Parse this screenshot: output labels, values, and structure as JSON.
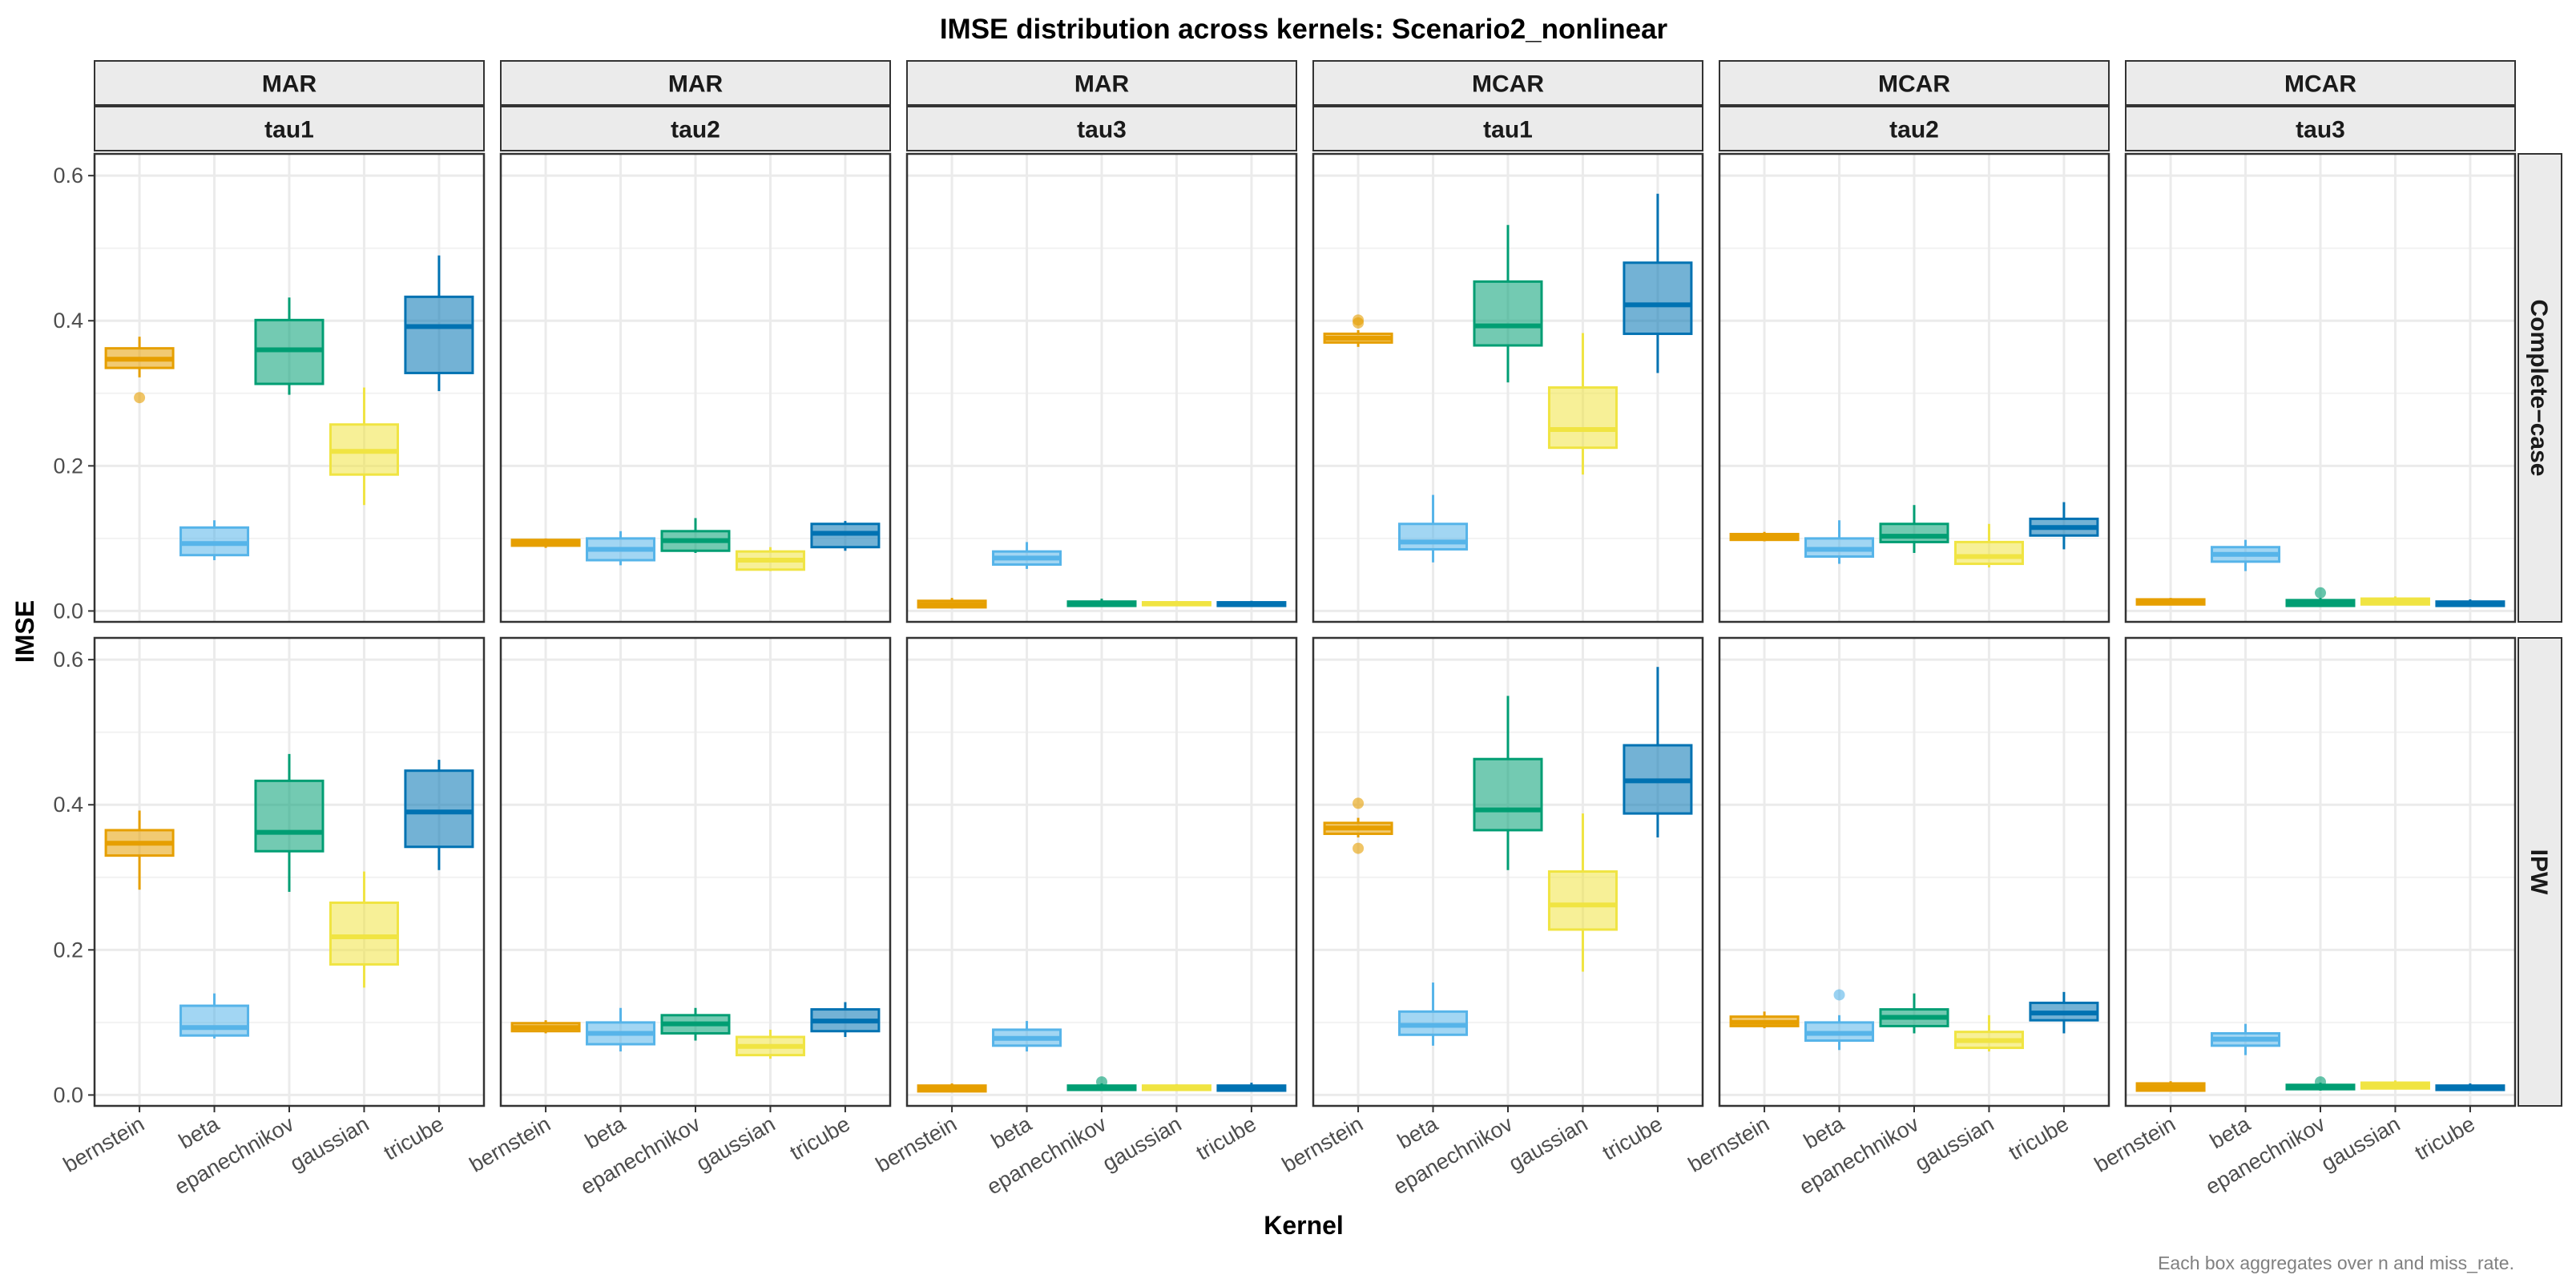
{
  "chart_data": {
    "type": "boxplot",
    "title": "IMSE distribution across kernels: Scenario2_nonlinear",
    "xlabel": "Kernel",
    "ylabel": "IMSE",
    "caption": "Each box aggregates over n and miss_rate.",
    "ylim": [
      -0.015,
      0.63
    ],
    "yticks": [
      0.0,
      0.2,
      0.4,
      0.6
    ],
    "ytick_labels": [
      "0.0",
      "0.2",
      "0.4",
      "0.6"
    ],
    "grid": true,
    "categories": [
      "bernstein",
      "beta",
      "epanechnikov",
      "gaussian",
      "tricube"
    ],
    "colors": {
      "bernstein": "#E69F00",
      "beta": "#56B4E9",
      "epanechnikov": "#009E73",
      "gaussian": "#F0E442",
      "tricube": "#0072B2"
    },
    "columns": [
      {
        "mech": "MAR",
        "tau": "tau1"
      },
      {
        "mech": "MAR",
        "tau": "tau2"
      },
      {
        "mech": "MAR",
        "tau": "tau3"
      },
      {
        "mech": "MCAR",
        "tau": "tau1"
      },
      {
        "mech": "MCAR",
        "tau": "tau2"
      },
      {
        "mech": "MCAR",
        "tau": "tau3"
      }
    ],
    "rows": [
      "Complete−case",
      "IPW"
    ],
    "panels": [
      {
        "row": 0,
        "col": 0,
        "boxes": [
          {
            "kernel": "bernstein",
            "min": 0.322,
            "q1": 0.335,
            "median": 0.347,
            "q3": 0.362,
            "max": 0.378,
            "outliers": [
              0.294
            ]
          },
          {
            "kernel": "beta",
            "min": 0.07,
            "q1": 0.077,
            "median": 0.093,
            "q3": 0.115,
            "max": 0.125,
            "outliers": []
          },
          {
            "kernel": "epanechnikov",
            "min": 0.298,
            "q1": 0.313,
            "median": 0.36,
            "q3": 0.401,
            "max": 0.432,
            "outliers": []
          },
          {
            "kernel": "gaussian",
            "min": 0.146,
            "q1": 0.188,
            "median": 0.22,
            "q3": 0.257,
            "max": 0.308,
            "outliers": []
          },
          {
            "kernel": "tricube",
            "min": 0.303,
            "q1": 0.328,
            "median": 0.392,
            "q3": 0.433,
            "max": 0.49,
            "outliers": []
          }
        ]
      },
      {
        "row": 0,
        "col": 1,
        "boxes": [
          {
            "kernel": "bernstein",
            "min": 0.087,
            "q1": 0.09,
            "median": 0.094,
            "q3": 0.098,
            "max": 0.1,
            "outliers": []
          },
          {
            "kernel": "beta",
            "min": 0.063,
            "q1": 0.07,
            "median": 0.085,
            "q3": 0.1,
            "max": 0.11,
            "outliers": []
          },
          {
            "kernel": "epanechnikov",
            "min": 0.08,
            "q1": 0.083,
            "median": 0.097,
            "q3": 0.11,
            "max": 0.128,
            "outliers": []
          },
          {
            "kernel": "gaussian",
            "min": 0.055,
            "q1": 0.057,
            "median": 0.07,
            "q3": 0.082,
            "max": 0.088,
            "outliers": []
          },
          {
            "kernel": "tricube",
            "min": 0.083,
            "q1": 0.088,
            "median": 0.107,
            "q3": 0.12,
            "max": 0.124,
            "outliers": []
          }
        ]
      },
      {
        "row": 0,
        "col": 2,
        "boxes": [
          {
            "kernel": "bernstein",
            "min": 0.004,
            "q1": 0.005,
            "median": 0.009,
            "q3": 0.014,
            "max": 0.018,
            "outliers": []
          },
          {
            "kernel": "beta",
            "min": 0.058,
            "q1": 0.064,
            "median": 0.073,
            "q3": 0.082,
            "max": 0.095,
            "outliers": []
          },
          {
            "kernel": "epanechnikov",
            "min": 0.006,
            "q1": 0.007,
            "median": 0.01,
            "q3": 0.013,
            "max": 0.017,
            "outliers": []
          },
          {
            "kernel": "gaussian",
            "min": 0.007,
            "q1": 0.008,
            "median": 0.01,
            "q3": 0.012,
            "max": 0.014,
            "outliers": []
          },
          {
            "kernel": "tricube",
            "min": 0.006,
            "q1": 0.007,
            "median": 0.009,
            "q3": 0.012,
            "max": 0.014,
            "outliers": []
          }
        ]
      },
      {
        "row": 0,
        "col": 3,
        "boxes": [
          {
            "kernel": "bernstein",
            "min": 0.364,
            "q1": 0.37,
            "median": 0.376,
            "q3": 0.382,
            "max": 0.387,
            "outliers": [
              0.397,
              0.401
            ]
          },
          {
            "kernel": "beta",
            "min": 0.067,
            "q1": 0.085,
            "median": 0.095,
            "q3": 0.12,
            "max": 0.16,
            "outliers": []
          },
          {
            "kernel": "epanechnikov",
            "min": 0.315,
            "q1": 0.366,
            "median": 0.393,
            "q3": 0.454,
            "max": 0.532,
            "outliers": []
          },
          {
            "kernel": "gaussian",
            "min": 0.188,
            "q1": 0.225,
            "median": 0.25,
            "q3": 0.308,
            "max": 0.383,
            "outliers": []
          },
          {
            "kernel": "tricube",
            "min": 0.328,
            "q1": 0.382,
            "median": 0.422,
            "q3": 0.48,
            "max": 0.575,
            "outliers": []
          }
        ]
      },
      {
        "row": 0,
        "col": 4,
        "boxes": [
          {
            "kernel": "bernstein",
            "min": 0.096,
            "q1": 0.098,
            "median": 0.102,
            "q3": 0.106,
            "max": 0.109,
            "outliers": []
          },
          {
            "kernel": "beta",
            "min": 0.065,
            "q1": 0.075,
            "median": 0.085,
            "q3": 0.1,
            "max": 0.125,
            "outliers": []
          },
          {
            "kernel": "epanechnikov",
            "min": 0.08,
            "q1": 0.095,
            "median": 0.103,
            "q3": 0.12,
            "max": 0.146,
            "outliers": []
          },
          {
            "kernel": "gaussian",
            "min": 0.06,
            "q1": 0.065,
            "median": 0.075,
            "q3": 0.095,
            "max": 0.12,
            "outliers": []
          },
          {
            "kernel": "tricube",
            "min": 0.085,
            "q1": 0.104,
            "median": 0.115,
            "q3": 0.127,
            "max": 0.15,
            "outliers": []
          }
        ]
      },
      {
        "row": 0,
        "col": 5,
        "boxes": [
          {
            "kernel": "bernstein",
            "min": 0.008,
            "q1": 0.009,
            "median": 0.012,
            "q3": 0.016,
            "max": 0.018,
            "outliers": []
          },
          {
            "kernel": "beta",
            "min": 0.055,
            "q1": 0.068,
            "median": 0.078,
            "q3": 0.088,
            "max": 0.098,
            "outliers": []
          },
          {
            "kernel": "epanechnikov",
            "min": 0.006,
            "q1": 0.007,
            "median": 0.011,
            "q3": 0.015,
            "max": 0.018,
            "outliers": [
              0.025
            ]
          },
          {
            "kernel": "gaussian",
            "min": 0.008,
            "q1": 0.009,
            "median": 0.013,
            "q3": 0.017,
            "max": 0.02,
            "outliers": []
          },
          {
            "kernel": "tricube",
            "min": 0.006,
            "q1": 0.007,
            "median": 0.01,
            "q3": 0.013,
            "max": 0.016,
            "outliers": []
          }
        ]
      },
      {
        "row": 1,
        "col": 0,
        "boxes": [
          {
            "kernel": "bernstein",
            "min": 0.283,
            "q1": 0.33,
            "median": 0.347,
            "q3": 0.365,
            "max": 0.392,
            "outliers": []
          },
          {
            "kernel": "beta",
            "min": 0.078,
            "q1": 0.082,
            "median": 0.093,
            "q3": 0.123,
            "max": 0.14,
            "outliers": []
          },
          {
            "kernel": "epanechnikov",
            "min": 0.28,
            "q1": 0.336,
            "median": 0.362,
            "q3": 0.433,
            "max": 0.47,
            "outliers": []
          },
          {
            "kernel": "gaussian",
            "min": 0.148,
            "q1": 0.18,
            "median": 0.218,
            "q3": 0.265,
            "max": 0.308,
            "outliers": []
          },
          {
            "kernel": "tricube",
            "min": 0.31,
            "q1": 0.342,
            "median": 0.39,
            "q3": 0.447,
            "max": 0.462,
            "outliers": []
          }
        ]
      },
      {
        "row": 1,
        "col": 1,
        "boxes": [
          {
            "kernel": "bernstein",
            "min": 0.085,
            "q1": 0.088,
            "median": 0.093,
            "q3": 0.099,
            "max": 0.103,
            "outliers": []
          },
          {
            "kernel": "beta",
            "min": 0.06,
            "q1": 0.07,
            "median": 0.085,
            "q3": 0.1,
            "max": 0.12,
            "outliers": []
          },
          {
            "kernel": "epanechnikov",
            "min": 0.075,
            "q1": 0.085,
            "median": 0.098,
            "q3": 0.11,
            "max": 0.12,
            "outliers": []
          },
          {
            "kernel": "gaussian",
            "min": 0.05,
            "q1": 0.055,
            "median": 0.067,
            "q3": 0.08,
            "max": 0.09,
            "outliers": []
          },
          {
            "kernel": "tricube",
            "min": 0.08,
            "q1": 0.088,
            "median": 0.102,
            "q3": 0.118,
            "max": 0.128,
            "outliers": []
          }
        ]
      },
      {
        "row": 1,
        "col": 2,
        "boxes": [
          {
            "kernel": "bernstein",
            "min": 0.004,
            "q1": 0.005,
            "median": 0.009,
            "q3": 0.013,
            "max": 0.016,
            "outliers": []
          },
          {
            "kernel": "beta",
            "min": 0.06,
            "q1": 0.068,
            "median": 0.078,
            "q3": 0.09,
            "max": 0.102,
            "outliers": []
          },
          {
            "kernel": "epanechnikov",
            "min": 0.006,
            "q1": 0.007,
            "median": 0.01,
            "q3": 0.013,
            "max": 0.016,
            "outliers": [
              0.018
            ]
          },
          {
            "kernel": "gaussian",
            "min": 0.006,
            "q1": 0.007,
            "median": 0.01,
            "q3": 0.013,
            "max": 0.015,
            "outliers": []
          },
          {
            "kernel": "tricube",
            "min": 0.005,
            "q1": 0.006,
            "median": 0.009,
            "q3": 0.013,
            "max": 0.017,
            "outliers": []
          }
        ]
      },
      {
        "row": 1,
        "col": 3,
        "boxes": [
          {
            "kernel": "bernstein",
            "min": 0.355,
            "q1": 0.36,
            "median": 0.368,
            "q3": 0.375,
            "max": 0.382,
            "outliers": [
              0.402,
              0.34
            ]
          },
          {
            "kernel": "beta",
            "min": 0.068,
            "q1": 0.083,
            "median": 0.096,
            "q3": 0.115,
            "max": 0.155,
            "outliers": []
          },
          {
            "kernel": "epanechnikov",
            "min": 0.31,
            "q1": 0.365,
            "median": 0.393,
            "q3": 0.463,
            "max": 0.55,
            "outliers": []
          },
          {
            "kernel": "gaussian",
            "min": 0.17,
            "q1": 0.228,
            "median": 0.262,
            "q3": 0.308,
            "max": 0.388,
            "outliers": []
          },
          {
            "kernel": "tricube",
            "min": 0.355,
            "q1": 0.388,
            "median": 0.433,
            "q3": 0.482,
            "max": 0.59,
            "outliers": []
          }
        ]
      },
      {
        "row": 1,
        "col": 4,
        "boxes": [
          {
            "kernel": "bernstein",
            "min": 0.092,
            "q1": 0.095,
            "median": 0.1,
            "q3": 0.108,
            "max": 0.115,
            "outliers": []
          },
          {
            "kernel": "beta",
            "min": 0.062,
            "q1": 0.075,
            "median": 0.085,
            "q3": 0.1,
            "max": 0.11,
            "outliers": [
              0.138
            ]
          },
          {
            "kernel": "epanechnikov",
            "min": 0.085,
            "q1": 0.095,
            "median": 0.107,
            "q3": 0.118,
            "max": 0.14,
            "outliers": []
          },
          {
            "kernel": "gaussian",
            "min": 0.06,
            "q1": 0.065,
            "median": 0.075,
            "q3": 0.087,
            "max": 0.11,
            "outliers": []
          },
          {
            "kernel": "tricube",
            "min": 0.085,
            "q1": 0.103,
            "median": 0.113,
            "q3": 0.127,
            "max": 0.142,
            "outliers": []
          }
        ]
      },
      {
        "row": 1,
        "col": 5,
        "boxes": [
          {
            "kernel": "bernstein",
            "min": 0.005,
            "q1": 0.006,
            "median": 0.011,
            "q3": 0.016,
            "max": 0.019,
            "outliers": []
          },
          {
            "kernel": "beta",
            "min": 0.055,
            "q1": 0.068,
            "median": 0.077,
            "q3": 0.085,
            "max": 0.098,
            "outliers": []
          },
          {
            "kernel": "epanechnikov",
            "min": 0.006,
            "q1": 0.008,
            "median": 0.011,
            "q3": 0.014,
            "max": 0.017,
            "outliers": [
              0.018
            ]
          },
          {
            "kernel": "gaussian",
            "min": 0.008,
            "q1": 0.009,
            "median": 0.013,
            "q3": 0.017,
            "max": 0.02,
            "outliers": []
          },
          {
            "kernel": "tricube",
            "min": 0.006,
            "q1": 0.007,
            "median": 0.01,
            "q3": 0.013,
            "max": 0.016,
            "outliers": []
          }
        ]
      }
    ]
  }
}
